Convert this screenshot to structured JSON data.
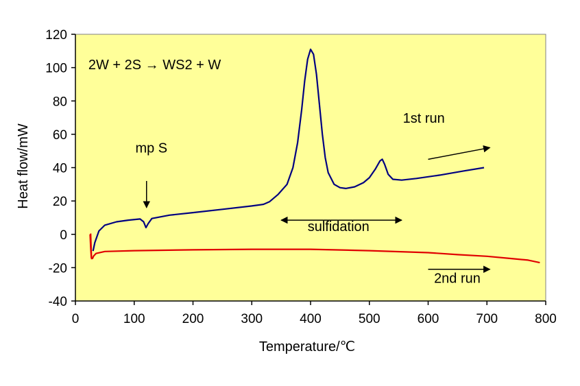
{
  "chart_data": {
    "type": "line",
    "title": "",
    "xlabel": "Temperature/℃",
    "ylabel": "Heat flow/mW",
    "xlim": [
      0,
      800
    ],
    "ylim": [
      -40,
      120
    ],
    "xticks": [
      0,
      100,
      200,
      300,
      400,
      500,
      600,
      700,
      800
    ],
    "yticks": [
      -40,
      -20,
      0,
      20,
      40,
      60,
      80,
      100,
      120
    ],
    "grid": false,
    "legend": "none",
    "plot_background": "#FFFF99",
    "series": [
      {
        "name": "1st run",
        "color": "#000080",
        "points": [
          [
            30,
            -10
          ],
          [
            33,
            -5
          ],
          [
            40,
            2
          ],
          [
            50,
            5.5
          ],
          [
            70,
            7.5
          ],
          [
            90,
            8.5
          ],
          [
            110,
            9.2
          ],
          [
            116,
            7.5
          ],
          [
            120,
            4
          ],
          [
            124,
            6.5
          ],
          [
            130,
            9.5
          ],
          [
            160,
            11.5
          ],
          [
            200,
            13
          ],
          [
            250,
            15
          ],
          [
            300,
            17
          ],
          [
            320,
            18
          ],
          [
            330,
            19.5
          ],
          [
            345,
            24
          ],
          [
            360,
            30
          ],
          [
            370,
            40
          ],
          [
            378,
            55
          ],
          [
            385,
            75
          ],
          [
            390,
            92
          ],
          [
            395,
            105
          ],
          [
            400,
            111
          ],
          [
            405,
            108
          ],
          [
            410,
            96
          ],
          [
            415,
            78
          ],
          [
            420,
            60
          ],
          [
            425,
            46
          ],
          [
            430,
            37
          ],
          [
            440,
            30
          ],
          [
            450,
            28
          ],
          [
            460,
            27.5
          ],
          [
            475,
            28.5
          ],
          [
            490,
            31
          ],
          [
            500,
            34
          ],
          [
            510,
            39
          ],
          [
            518,
            44
          ],
          [
            522,
            45
          ],
          [
            526,
            42
          ],
          [
            532,
            36
          ],
          [
            540,
            33
          ],
          [
            555,
            32.5
          ],
          [
            580,
            33.5
          ],
          [
            620,
            35.5
          ],
          [
            660,
            38
          ],
          [
            695,
            40
          ]
        ]
      },
      {
        "name": "2nd run",
        "color": "#E00000",
        "points": [
          [
            25,
            0
          ],
          [
            26,
            -8
          ],
          [
            27,
            -14
          ],
          [
            29,
            -14.5
          ],
          [
            31,
            -13
          ],
          [
            35,
            -11.5
          ],
          [
            50,
            -10.3
          ],
          [
            100,
            -9.8
          ],
          [
            200,
            -9.3
          ],
          [
            300,
            -9
          ],
          [
            400,
            -9
          ],
          [
            500,
            -9.8
          ],
          [
            600,
            -11
          ],
          [
            650,
            -12.2
          ],
          [
            700,
            -13.2
          ],
          [
            740,
            -14.5
          ],
          [
            770,
            -15.5
          ],
          [
            790,
            -17
          ]
        ]
      }
    ],
    "red_spike": [
      [
        26,
        0.5
      ],
      [
        27.5,
        -15
      ]
    ],
    "annotations": [
      {
        "text": "2W + 2S → WS2 + W",
        "x": 22,
        "y": 99
      },
      {
        "text": "mp S",
        "x": 102,
        "y": 49
      },
      {
        "text": "1st run",
        "x": 557,
        "y": 67
      },
      {
        "text": "sulfidation",
        "x": 395,
        "y": 2
      },
      {
        "text": "2nd run",
        "x": 610,
        "y": -29
      }
    ],
    "arrows": [
      {
        "kind": "single",
        "from": [
          121,
          32
        ],
        "to": [
          121,
          16
        ]
      },
      {
        "kind": "single",
        "from": [
          600,
          45
        ],
        "to": [
          705,
          52
        ]
      },
      {
        "kind": "double",
        "from": [
          350,
          8.5
        ],
        "to": [
          555,
          8.5
        ]
      },
      {
        "kind": "single",
        "from": [
          600,
          -21
        ],
        "to": [
          705,
          -21
        ]
      }
    ]
  }
}
